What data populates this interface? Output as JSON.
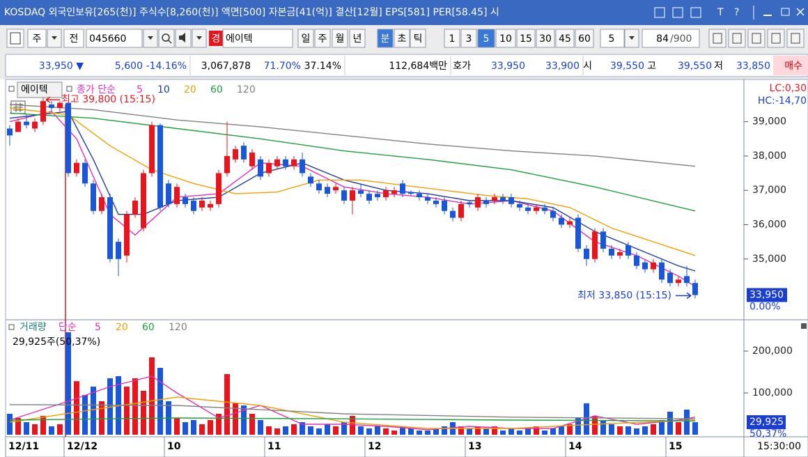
{
  "title_bar": {
    "text": "KOSDAQ 외국인보유[265(천)] 주식수[8,260(천)] 액면[500] 자본금[41(억)] 결산[12월] EPS[581] PER[58.45] 시",
    "tools": [
      "T",
      "?"
    ]
  },
  "toolbar": {
    "type_select": "주",
    "market": "전",
    "code": "045660",
    "name_badge": "경",
    "name": "에이텍",
    "periods": [
      {
        "label": "일"
      },
      {
        "label": "주"
      },
      {
        "label": "월"
      },
      {
        "label": "년"
      },
      {
        "label": "분",
        "active": true
      },
      {
        "label": "초"
      },
      {
        "label": "틱"
      }
    ],
    "intervals": [
      {
        "label": "1"
      },
      {
        "label": "3"
      },
      {
        "label": "5",
        "active": true
      },
      {
        "label": "10"
      },
      {
        "label": "15"
      },
      {
        "label": "30"
      },
      {
        "label": "45"
      },
      {
        "label": "60"
      }
    ],
    "count_select": "5",
    "count": "84",
    "count_total": "/900"
  },
  "quote_bar": [
    {
      "text": "33,950 ▼",
      "color": "#1a3fd0"
    },
    {
      "text": "5,600",
      "color": "#1a3fd0"
    },
    {
      "text": "-14.16%",
      "color": "#1a3fd0"
    },
    {
      "text": "3,067,878",
      "color": "#000000"
    },
    {
      "text": "71.70%",
      "color": "#1a3fd0"
    },
    {
      "text": "37.14%",
      "color": "#000000"
    },
    {
      "text": "112,684백만",
      "color": "#000000"
    },
    {
      "text": "호가",
      "color": "#000000"
    },
    {
      "text": "33,950",
      "color": "#1a3fd0"
    },
    {
      "text": "33,900",
      "color": "#1a3fd0"
    },
    {
      "text": "시",
      "color": "#000000"
    },
    {
      "text": "39,550",
      "color": "#1a3fd0"
    },
    {
      "text": "고",
      "color": "#000000"
    },
    {
      "text": "39,550",
      "color": "#1a3fd0"
    },
    {
      "text": "저",
      "color": "#000000"
    },
    {
      "text": "33,850",
      "color": "#1a3fd0"
    },
    {
      "text": "매수",
      "color": "#d00000"
    }
  ],
  "chart_data": [
    {
      "type": "candlestick",
      "legend_name": "에이텍",
      "legend_label": "종가 단순",
      "up_color": "#e8141e",
      "down_color": "#1a56d8",
      "ylim": [
        33250,
        40150
      ],
      "yticks": [
        {
          "value": 35000,
          "label": "35,000"
        },
        {
          "value": 36000,
          "label": "36,000"
        },
        {
          "value": 37000,
          "label": "37,000"
        },
        {
          "value": 38000,
          "label": "38,000"
        },
        {
          "value": 39000,
          "label": "39,000"
        }
      ],
      "high_label": "최고 39,800 (15:15)",
      "low_label": "최저 33,850 (15:15)",
      "lc_label": "LC:0,30",
      "hc_label": "HC:-14,70",
      "last_label": "33,950",
      "last_change": "0.00%",
      "open": [
        38800,
        38700,
        39000,
        38800,
        39000,
        39500,
        39400,
        39550,
        37500,
        37800,
        37200,
        36400,
        36800,
        35500,
        35100,
        36300,
        35900,
        37500,
        38900,
        37200,
        36600,
        36800,
        36700,
        36500,
        36500,
        36600,
        37500,
        37900,
        38300,
        37700,
        37900,
        37500,
        37700,
        37900,
        37700,
        37900,
        37400,
        37200,
        37100,
        37000,
        37000,
        36700,
        37000,
        36900,
        36900,
        36800,
        36900,
        37200,
        36950,
        36900,
        36800,
        36700,
        36700,
        36400,
        36200,
        36650,
        36500,
        36700,
        36700,
        36800,
        36800,
        36600,
        36500,
        36400,
        36500,
        36400,
        36200,
        36000,
        36200,
        35300,
        35000,
        35800,
        35300,
        35100,
        35400,
        35100,
        34900,
        34700,
        34900,
        34600,
        34300,
        34500,
        34300
      ],
      "high": [
        38900,
        39100,
        39200,
        39100,
        39800,
        39600,
        39600,
        39550,
        37900,
        37900,
        37300,
        36900,
        36900,
        35600,
        36400,
        36800,
        37600,
        39000,
        38950,
        37300,
        37200,
        36900,
        36800,
        36800,
        36700,
        37600,
        39000,
        38300,
        38400,
        38200,
        38000,
        37900,
        38000,
        38000,
        38000,
        38100,
        37500,
        37300,
        37200,
        37200,
        37100,
        37100,
        37200,
        37000,
        37000,
        37100,
        37100,
        37300,
        37000,
        37000,
        36900,
        36800,
        36800,
        36500,
        36700,
        36700,
        36900,
        36800,
        36900,
        36900,
        36900,
        36700,
        36600,
        36600,
        36600,
        36500,
        36300,
        36200,
        36300,
        35400,
        35900,
        35900,
        35400,
        35300,
        35500,
        35200,
        35000,
        35000,
        35000,
        34700,
        34500,
        34800,
        34400
      ],
      "low": [
        38300,
        38700,
        38800,
        38700,
        38900,
        39300,
        39300,
        37400,
        37400,
        37100,
        36300,
        36300,
        34900,
        34500,
        34900,
        36200,
        35800,
        37400,
        36400,
        36500,
        36500,
        36500,
        36300,
        36400,
        36400,
        36500,
        37400,
        37800,
        37800,
        37600,
        37300,
        37400,
        37600,
        37600,
        37600,
        37400,
        37100,
        36900,
        36800,
        36900,
        36600,
        36300,
        36800,
        36600,
        36700,
        36700,
        36800,
        36800,
        36850,
        36700,
        36600,
        36500,
        36300,
        36100,
        36100,
        36500,
        36400,
        36500,
        36600,
        36600,
        36500,
        36400,
        36300,
        36300,
        36300,
        36100,
        35900,
        35900,
        35200,
        34800,
        34900,
        35200,
        35000,
        35000,
        35000,
        34700,
        34600,
        34600,
        34300,
        34200,
        34200,
        34200,
        33850
      ],
      "close": [
        38600,
        39000,
        38900,
        39000,
        39600,
        39400,
        39550,
        37500,
        37800,
        37200,
        36400,
        36800,
        35000,
        35000,
        36300,
        36700,
        37500,
        38900,
        36500,
        36600,
        37100,
        36600,
        36400,
        36700,
        36600,
        37500,
        38000,
        38200,
        37900,
        38100,
        37400,
        37800,
        37900,
        37700,
        37900,
        37500,
        37200,
        37000,
        36900,
        37100,
        36700,
        37000,
        36900,
        36700,
        36800,
        37000,
        37000,
        36900,
        36900,
        36800,
        36700,
        36600,
        36400,
        36200,
        36600,
        36600,
        36800,
        36600,
        36800,
        36700,
        36600,
        36500,
        36400,
        36500,
        36400,
        36200,
        36000,
        36100,
        35300,
        35000,
        35800,
        35300,
        35100,
        35200,
        35100,
        34800,
        34700,
        34900,
        34400,
        34300,
        34400,
        34300,
        33950
      ],
      "ma_series": [
        {
          "name": "5",
          "color": "#e030b8",
          "x": [
            0,
            5,
            8,
            12,
            15,
            20,
            25,
            30,
            35,
            40,
            45,
            50,
            55,
            60,
            65,
            70,
            75,
            80,
            82
          ],
          "values": [
            39000,
            39300,
            38500,
            36300,
            35700,
            36800,
            36900,
            37800,
            37700,
            37100,
            36900,
            36800,
            36600,
            36700,
            36400,
            35500,
            35100,
            34500,
            34200
          ]
        },
        {
          "name": "10",
          "color": "#1e3c9c",
          "x": [
            0,
            7,
            10,
            13,
            16,
            20,
            25,
            30,
            35,
            40,
            45,
            50,
            55,
            60,
            65,
            70,
            75,
            80,
            82
          ],
          "values": [
            39100,
            39300,
            37900,
            36300,
            36300,
            36700,
            36800,
            37500,
            37800,
            37300,
            37000,
            36900,
            36700,
            36700,
            36500,
            35800,
            35300,
            34800,
            34650
          ]
        },
        {
          "name": "20",
          "color": "#f0a000",
          "x": [
            0,
            7,
            12,
            17,
            22,
            27,
            32,
            37,
            42,
            47,
            52,
            57,
            62,
            67,
            72,
            77,
            82
          ],
          "values": [
            39400,
            39200,
            38300,
            37600,
            37200,
            36900,
            36950,
            37300,
            37300,
            37150,
            37000,
            36850,
            36750,
            36500,
            35900,
            35500,
            35100
          ]
        },
        {
          "name": "60",
          "color": "#1f9e3c",
          "x": [
            0,
            10,
            20,
            30,
            40,
            50,
            60,
            70,
            82
          ],
          "values": [
            39250,
            39100,
            38800,
            38500,
            38150,
            37900,
            37600,
            37100,
            36400
          ]
        },
        {
          "name": "120",
          "color": "#808080",
          "x": [
            0,
            10,
            20,
            30,
            40,
            50,
            60,
            70,
            82
          ],
          "values": [
            39500,
            39350,
            39050,
            38850,
            38600,
            38350,
            38150,
            38000,
            37700
          ]
        }
      ]
    },
    {
      "type": "bar",
      "legend_name": "거래량",
      "legend_label": "단순",
      "info": "29,925주(50,37%)",
      "last_label": "29,925",
      "last_pct": "50,37%",
      "ylim": [
        0,
        273333
      ],
      "yticks": [
        {
          "value": 100000,
          "label": "100,000"
        },
        {
          "value": 200000,
          "label": "200,000"
        }
      ],
      "time_label": "15:30:00",
      "categories": [
        "12/11",
        null,
        null,
        null,
        null,
        null,
        null,
        "12/12",
        null,
        null,
        null,
        null,
        null,
        null,
        null,
        null,
        null,
        null,
        null,
        "10",
        null,
        null,
        null,
        null,
        null,
        null,
        null,
        null,
        null,
        null,
        null,
        "11",
        null,
        null,
        null,
        null,
        null,
        null,
        null,
        null,
        null,
        null,
        null,
        "12",
        null,
        null,
        null,
        null,
        null,
        null,
        null,
        null,
        null,
        null,
        null,
        "13",
        null,
        null,
        null,
        null,
        null,
        null,
        null,
        null,
        null,
        null,
        null,
        "14",
        null,
        null,
        null,
        null,
        null,
        null,
        null,
        null,
        null,
        null,
        null,
        "15",
        null,
        null,
        null
      ],
      "values": [
        50000,
        40000,
        30000,
        25000,
        45000,
        20000,
        25000,
        245000,
        128000,
        95000,
        115000,
        80000,
        135000,
        140000,
        115000,
        135000,
        105000,
        185000,
        160000,
        80000,
        40000,
        30000,
        35000,
        25000,
        35000,
        50000,
        145000,
        75000,
        70000,
        50000,
        35000,
        20000,
        15000,
        20000,
        25000,
        30000,
        20000,
        15000,
        25000,
        20000,
        30000,
        45000,
        20000,
        15000,
        20000,
        15000,
        10000,
        20000,
        15000,
        10000,
        10000,
        15000,
        20000,
        30000,
        20000,
        15000,
        20000,
        15000,
        20000,
        10000,
        15000,
        10000,
        15000,
        20000,
        10000,
        15000,
        20000,
        25000,
        40000,
        75000,
        45000,
        35000,
        25000,
        20000,
        20000,
        15000,
        20000,
        25000,
        35000,
        55000,
        30000,
        60000,
        29925
      ],
      "ma_series": [
        {
          "name": "5",
          "color": "#e030b8",
          "x": [
            0,
            7,
            12,
            17,
            20,
            25,
            30,
            35,
            40,
            45,
            50,
            55,
            60,
            65,
            70,
            75,
            80,
            82
          ],
          "values": [
            35000,
            80000,
            115000,
            140000,
            100000,
            40000,
            70000,
            25000,
            25000,
            20000,
            12000,
            20000,
            15000,
            15000,
            45000,
            25000,
            35000,
            42000
          ]
        },
        {
          "name": "20",
          "color": "#f0a000",
          "x": [
            0,
            10,
            20,
            30,
            40,
            50,
            60,
            70,
            82
          ],
          "values": [
            30000,
            60000,
            90000,
            70000,
            30000,
            15000,
            15000,
            25000,
            35000
          ]
        },
        {
          "name": "60",
          "color": "#1f9e3c",
          "x": [
            0,
            20,
            40,
            60,
            82
          ],
          "values": [
            35000,
            40000,
            38000,
            35000,
            33000
          ]
        },
        {
          "name": "120",
          "color": "#808080",
          "x": [
            0,
            20,
            40,
            60,
            82
          ],
          "values": [
            72000,
            70000,
            50000,
            42000,
            38000
          ]
        }
      ]
    }
  ]
}
